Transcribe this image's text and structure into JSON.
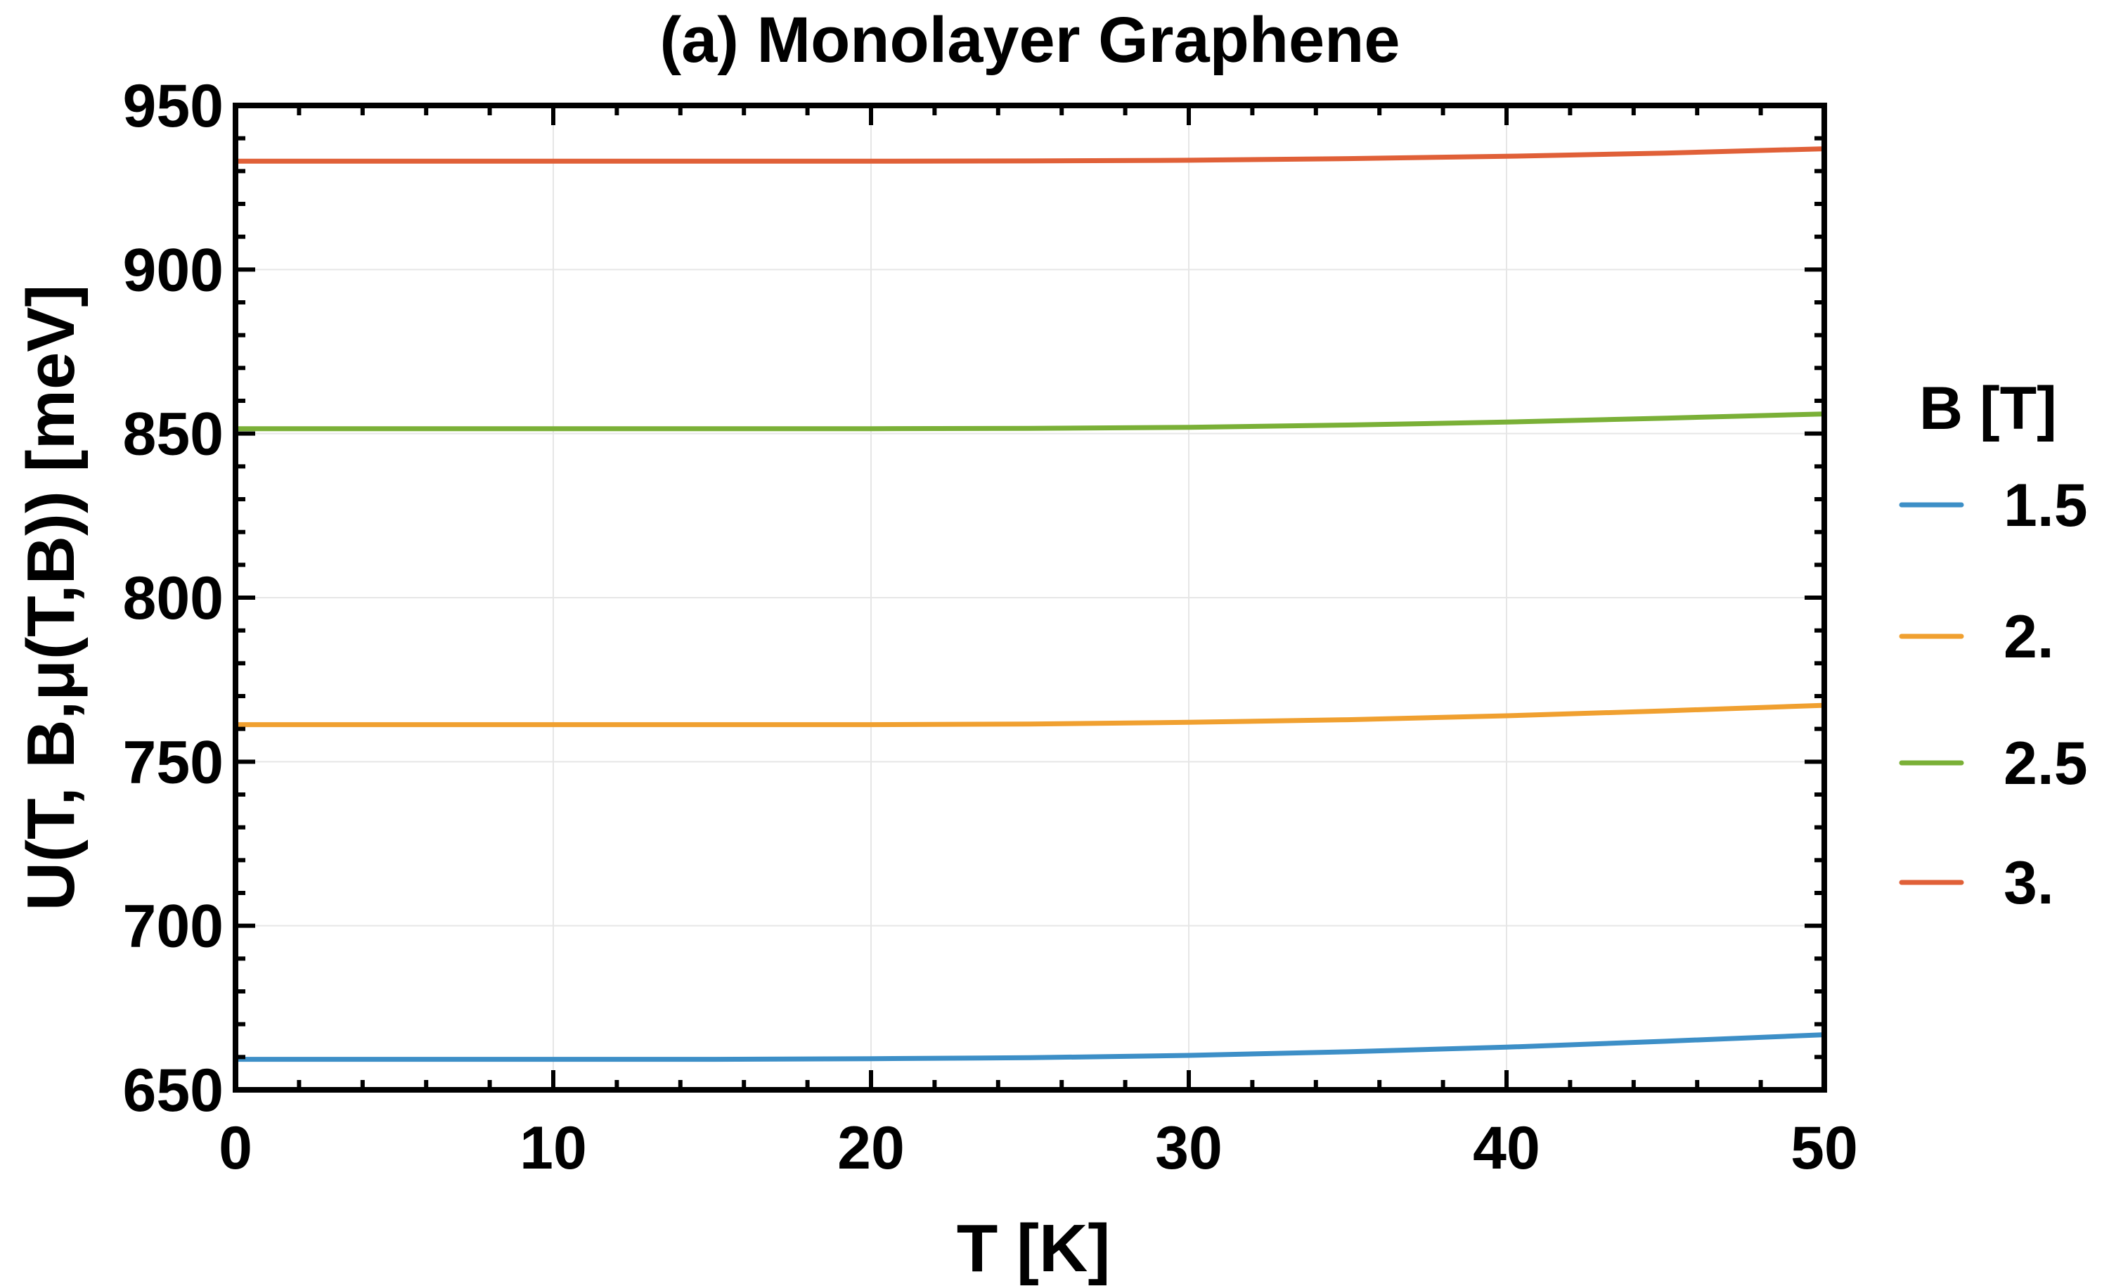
{
  "chart_data": {
    "type": "line",
    "title": "(a) Monolayer Graphene",
    "xlabel": "T [K]",
    "ylabel": "U(T, B,μ(T,B)) [meV]",
    "xlim": [
      0,
      50
    ],
    "ylim": [
      650,
      950
    ],
    "xticks": [
      0,
      10,
      20,
      30,
      40,
      50
    ],
    "yticks": [
      650,
      700,
      750,
      800,
      850,
      900,
      950
    ],
    "xtick_labels": [
      "0",
      "10",
      "20",
      "30",
      "40",
      "50"
    ],
    "ytick_labels": [
      "650",
      "700",
      "750",
      "800",
      "850",
      "900",
      "950"
    ],
    "grid": true,
    "legend": {
      "title": "B [T]",
      "placement": "right",
      "entries": [
        "1.5",
        "2.",
        "2.5",
        "3."
      ]
    },
    "x": [
      0,
      5,
      10,
      15,
      20,
      25,
      30,
      35,
      40,
      45,
      50
    ],
    "series": [
      {
        "name": "1.5",
        "color": "#3d8fc7",
        "values": [
          659.3,
          659.3,
          659.3,
          659.3,
          659.5,
          659.8,
          660.5,
          661.6,
          663.0,
          664.8,
          666.8
        ]
      },
      {
        "name": "2.",
        "color": "#f0a030",
        "values": [
          761.3,
          761.3,
          761.3,
          761.3,
          761.3,
          761.5,
          762.0,
          762.8,
          764.0,
          765.5,
          767.2
        ]
      },
      {
        "name": "2.5",
        "color": "#7ab037",
        "values": [
          851.5,
          851.5,
          851.5,
          851.5,
          851.5,
          851.6,
          851.9,
          852.6,
          853.5,
          854.7,
          856.0
        ]
      },
      {
        "name": "3.",
        "color": "#e06038",
        "values": [
          933.0,
          933.0,
          933.0,
          933.0,
          933.0,
          933.1,
          933.3,
          933.8,
          934.5,
          935.5,
          936.8
        ]
      }
    ]
  }
}
